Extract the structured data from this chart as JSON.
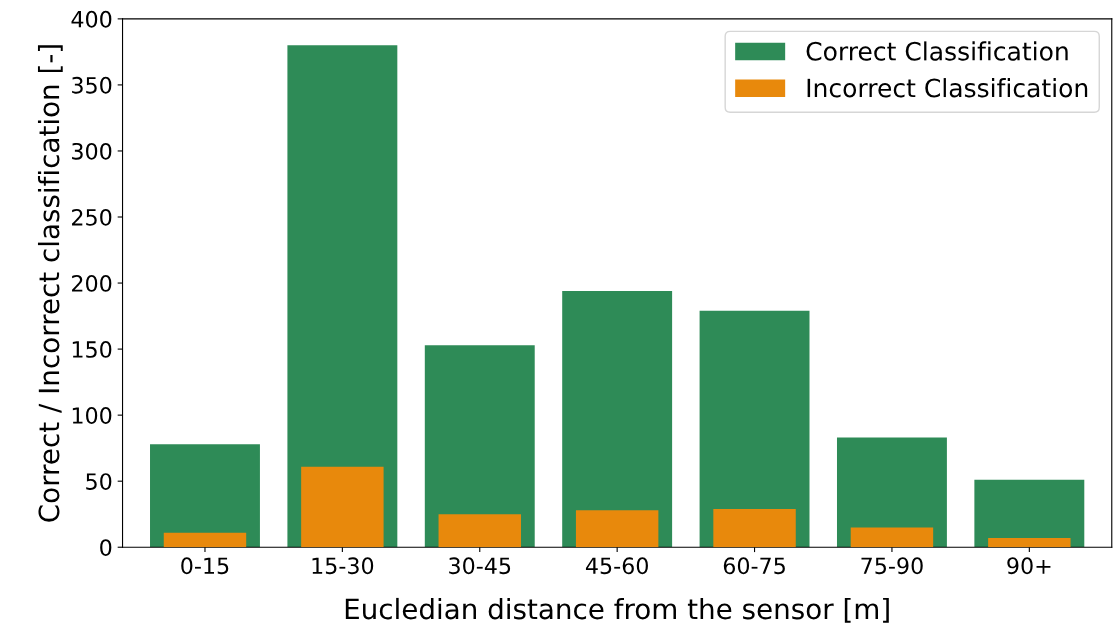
{
  "chart_data": {
    "type": "bar",
    "xlabel": "Eucledian distance from the sensor [m]",
    "ylabel": "Correct / Incorrect classification [-]",
    "categories": [
      "0-15",
      "15-30",
      "30-45",
      "45-60",
      "60-75",
      "75-90",
      "90+"
    ],
    "series": [
      {
        "name": "Correct Classification",
        "color": "#2e8b57",
        "values": [
          78,
          380,
          153,
          194,
          179,
          83,
          51
        ]
      },
      {
        "name": "Incorrect Classification",
        "color": "#e8890c",
        "values": [
          11,
          61,
          25,
          28,
          29,
          15,
          7
        ]
      }
    ],
    "ylim": [
      0,
      400
    ],
    "yticks": [
      0,
      50,
      100,
      150,
      200,
      250,
      300,
      350,
      400
    ],
    "grid": false,
    "legend": "top right"
  }
}
